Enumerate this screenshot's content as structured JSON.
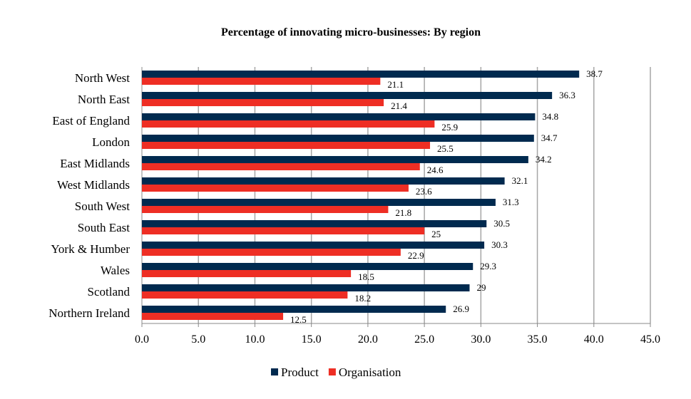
{
  "chart_data": {
    "type": "bar",
    "orientation": "horizontal",
    "title": "Percentage of innovating micro-businesses: By region",
    "xlabel": "",
    "ylabel": "",
    "xlim": [
      0,
      45
    ],
    "xticks": [
      "0.0",
      "5.0",
      "10.0",
      "15.0",
      "20.0",
      "25.0",
      "30.0",
      "35.0",
      "40.0",
      "45.0"
    ],
    "grid": true,
    "legend_position": "bottom",
    "categories": [
      "North West",
      "North East",
      "East of England",
      "London",
      "East Midlands",
      "West Midlands",
      "South West",
      "South East",
      "York & Humber",
      "Wales",
      "Scotland",
      "Northern Ireland"
    ],
    "series": [
      {
        "name": "Product",
        "color": "#002a4f",
        "values": [
          38.7,
          36.3,
          34.8,
          34.7,
          34.2,
          32.1,
          31.3,
          30.5,
          30.3,
          29.3,
          29.0,
          26.9
        ]
      },
      {
        "name": "Organisation",
        "color": "#ee2e24",
        "values": [
          21.1,
          21.4,
          25.9,
          25.5,
          24.6,
          23.6,
          21.8,
          25.0,
          22.9,
          18.5,
          18.2,
          12.5
        ]
      }
    ]
  }
}
